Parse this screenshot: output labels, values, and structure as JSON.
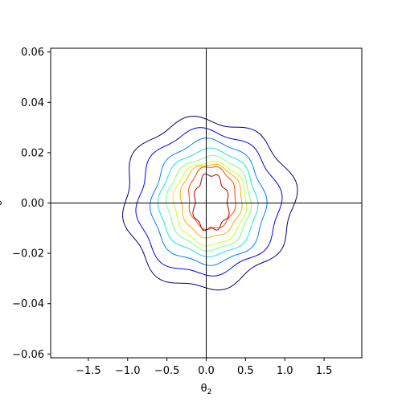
{
  "chart_data": {
    "type": "contour",
    "xlabel": "θ",
    "xlabel_sub": "2",
    "ylabel": "θ",
    "xlim": [
      -1.98,
      1.98
    ],
    "ylim": [
      -0.0615,
      0.0615
    ],
    "x_ticks": [
      -1.5,
      -1.0,
      -0.5,
      0.0,
      0.5,
      1.0,
      1.5
    ],
    "x_tick_labels": [
      "−1.5",
      "−1.0",
      "−0.5",
      "0.0",
      "0.5",
      "1.0",
      "1.5"
    ],
    "y_ticks": [
      -0.06,
      -0.04,
      -0.02,
      0.0,
      0.02,
      0.04,
      0.06
    ],
    "y_tick_labels": [
      "−0.06",
      "−0.04",
      "−0.02",
      "0.00",
      "0.02",
      "0.04",
      "0.06"
    ],
    "reference_lines": {
      "x": 0.0,
      "y": 0.0
    },
    "colormap": "jet",
    "contour_levels": [
      {
        "color": "#00007f",
        "center": [
          0.02,
          0.0
        ],
        "rx": 1.08,
        "ry": 0.0335,
        "wobble": 0.045
      },
      {
        "color": "#0000ff",
        "center": [
          0.02,
          0.0
        ],
        "rx": 0.9,
        "ry": 0.0285,
        "wobble": 0.04
      },
      {
        "color": "#007fff",
        "center": [
          0.03,
          0.0
        ],
        "rx": 0.72,
        "ry": 0.0245,
        "wobble": 0.035
      },
      {
        "color": "#1de3dc",
        "center": [
          0.03,
          0.0
        ],
        "rx": 0.62,
        "ry": 0.021,
        "wobble": 0.03
      },
      {
        "color": "#7fff7f",
        "center": [
          0.04,
          0.0
        ],
        "rx": 0.53,
        "ry": 0.0185,
        "wobble": 0.03
      },
      {
        "color": "#ccff26",
        "center": [
          0.05,
          0.0
        ],
        "rx": 0.46,
        "ry": 0.0165,
        "wobble": 0.03
      },
      {
        "color": "#ffb000",
        "center": [
          0.06,
          0.001
        ],
        "rx": 0.39,
        "ry": 0.0145,
        "wobble": 0.03
      },
      {
        "color": "#ff4400",
        "center": [
          0.07,
          0.002
        ],
        "rx": 0.3,
        "ry": 0.0125,
        "wobble": 0.035
      },
      {
        "color": "#b20000",
        "center": [
          0.06,
          0.0
        ],
        "rx": 0.22,
        "ry": 0.011,
        "wobble": 0.08
      }
    ]
  }
}
